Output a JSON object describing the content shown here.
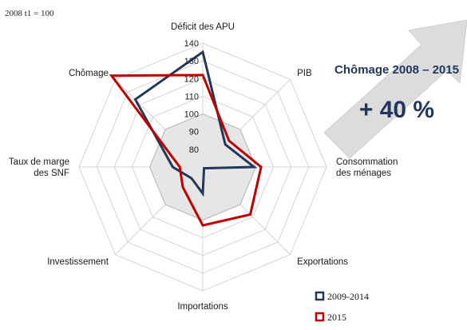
{
  "base_note": "2008 t1 = 100",
  "callout": {
    "title": "Chômage 2008 – 2015",
    "value": "+ 40 %",
    "arrow_color": "#dcdcdc"
  },
  "chart_data": {
    "type": "radar",
    "axes": [
      {
        "lines": [
          "Déficit des APU"
        ]
      },
      {
        "lines": [
          "PIB"
        ]
      },
      {
        "lines": [
          "Consommation",
          "des ménages"
        ]
      },
      {
        "lines": [
          "Exportations"
        ]
      },
      {
        "lines": [
          "Importations"
        ]
      },
      {
        "lines": [
          "Investissement"
        ]
      },
      {
        "lines": [
          "Taux de marge",
          "des SNF"
        ]
      },
      {
        "lines": [
          "Chômage"
        ]
      }
    ],
    "rlim": [
      70,
      140
    ],
    "rticks": [
      80,
      90,
      100,
      110,
      120,
      130,
      140
    ],
    "base_value": 100,
    "series": [
      {
        "name": "2009-2014",
        "color": "#23375a",
        "values": [
          135,
          88,
          99,
          71,
          85,
          79,
          87,
          124
        ]
      },
      {
        "name": "2015",
        "color": "#c00000",
        "values": [
          122,
          91,
          103,
          108,
          103,
          86,
          83,
          143
        ]
      }
    ],
    "legend_position": "bottom-right",
    "grid": true
  }
}
